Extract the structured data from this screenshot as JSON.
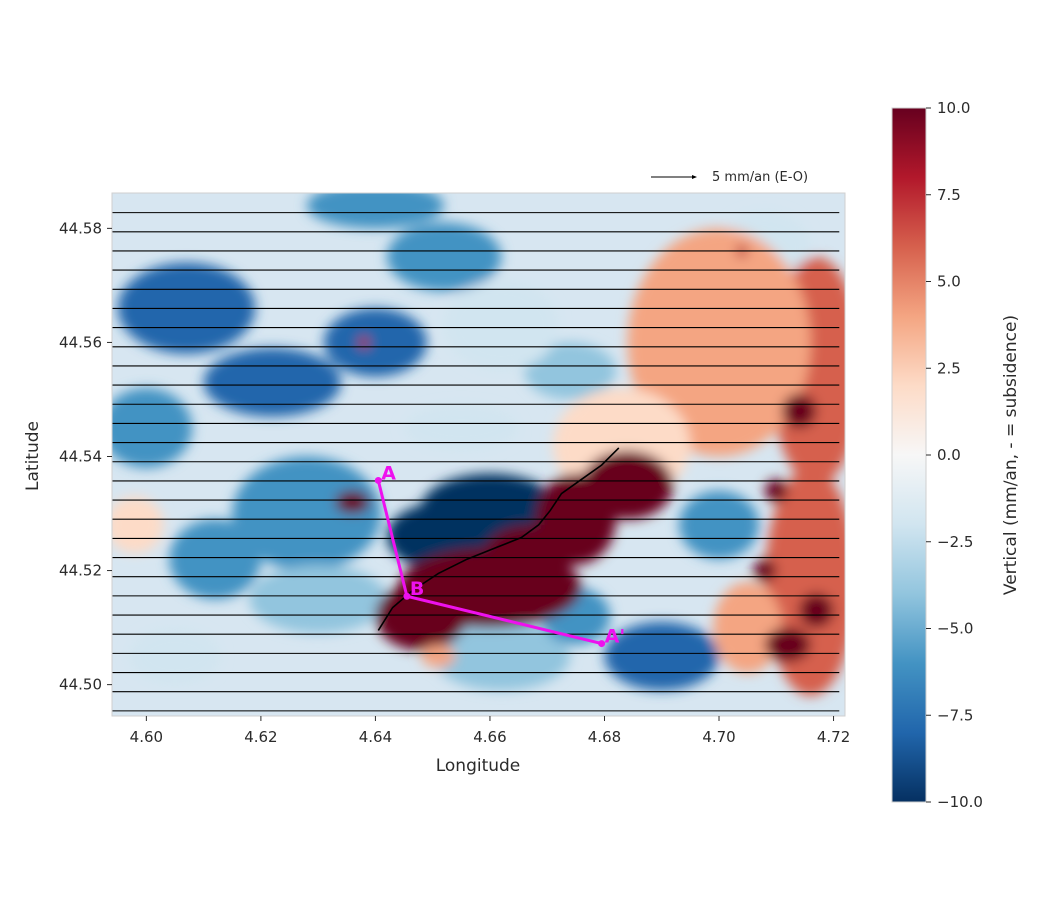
{
  "chart_data": {
    "type": "heatmap",
    "title": "",
    "xlabel": "Longitude",
    "ylabel": "Latitude",
    "xlim": [
      4.594,
      4.722
    ],
    "ylim": [
      44.4945,
      44.5862
    ],
    "x_ticks": [
      "4.60",
      "4.62",
      "4.64",
      "4.66",
      "4.68",
      "4.70",
      "4.72"
    ],
    "y_ticks": [
      "44.50",
      "44.52",
      "44.54",
      "44.56",
      "44.58"
    ],
    "grid": false,
    "colormap": "RdBu_r",
    "colorbar": {
      "label": "Vertical (mm/an, - = subsidence)",
      "range": [
        -10,
        10
      ],
      "ticks": [
        "10.0",
        "7.5",
        "5.0",
        "2.5",
        "0.0",
        "−2.5",
        "−5.0",
        "−7.5",
        "−10.0"
      ],
      "colors": [
        "#053061",
        "#2166ac",
        "#4393c3",
        "#92c5de",
        "#d1e5f0",
        "#f7f7f7",
        "#fddbc7",
        "#f4a582",
        "#d6604d",
        "#b2182b",
        "#67001f"
      ]
    },
    "background_color": "#d7e6f1",
    "field_blobs": [
      {
        "lon": 4.607,
        "lat": 44.566,
        "rlon": 0.012,
        "rlat": 0.008,
        "v": -9
      },
      {
        "lon": 4.622,
        "lat": 44.553,
        "rlon": 0.012,
        "rlat": 0.006,
        "v": -8
      },
      {
        "lon": 4.6,
        "lat": 44.545,
        "rlon": 0.008,
        "rlat": 0.007,
        "v": -6
      },
      {
        "lon": 4.64,
        "lat": 44.56,
        "rlon": 0.009,
        "rlat": 0.006,
        "v": -8
      },
      {
        "lon": 4.652,
        "lat": 44.575,
        "rlon": 0.01,
        "rlat": 0.006,
        "v": -7
      },
      {
        "lon": 4.628,
        "lat": 44.53,
        "rlon": 0.013,
        "rlat": 0.01,
        "v": -6
      },
      {
        "lon": 4.63,
        "lat": 44.515,
        "rlon": 0.012,
        "rlat": 0.006,
        "v": -5
      },
      {
        "lon": 4.612,
        "lat": 44.522,
        "rlon": 0.008,
        "rlat": 0.007,
        "v": -6
      },
      {
        "lon": 4.66,
        "lat": 44.531,
        "rlon": 0.012,
        "rlat": 0.006,
        "v": -10
      },
      {
        "lon": 4.652,
        "lat": 44.526,
        "rlon": 0.01,
        "rlat": 0.006,
        "v": -10
      },
      {
        "lon": 4.674,
        "lat": 44.555,
        "rlon": 0.008,
        "rlat": 0.005,
        "v": -5
      },
      {
        "lon": 4.697,
        "lat": 44.56,
        "rlon": 0.005,
        "rlat": 0.003,
        "v": -9
      },
      {
        "lon": 4.7,
        "lat": 44.528,
        "rlon": 0.007,
        "rlat": 0.006,
        "v": -6
      },
      {
        "lon": 4.69,
        "lat": 44.505,
        "rlon": 0.01,
        "rlat": 0.006,
        "v": -8
      },
      {
        "lon": 4.662,
        "lat": 44.505,
        "rlon": 0.012,
        "rlat": 0.006,
        "v": -4
      },
      {
        "lon": 4.675,
        "lat": 44.512,
        "rlon": 0.006,
        "rlat": 0.005,
        "v": -7
      },
      {
        "lon": 4.64,
        "lat": 44.584,
        "rlon": 0.012,
        "rlat": 0.004,
        "v": -6
      },
      {
        "lon": 4.662,
        "lat": 44.563,
        "rlon": 0.01,
        "rlat": 0.008,
        "v": -3
      },
      {
        "lon": 4.655,
        "lat": 44.545,
        "rlon": 0.01,
        "rlat": 0.004,
        "v": -3
      },
      {
        "lon": 4.598,
        "lat": 44.528,
        "rlon": 0.005,
        "rlat": 0.005,
        "v": 2
      },
      {
        "lon": 4.605,
        "lat": 44.505,
        "rlon": 0.008,
        "rlat": 0.005,
        "v": -2
      },
      {
        "lon": 4.708,
        "lat": 44.577,
        "rlon": 0.008,
        "rlat": 0.006,
        "v": -3
      },
      {
        "lon": 4.717,
        "lat": 44.555,
        "rlon": 0.008,
        "rlat": 0.02,
        "v": 6
      },
      {
        "lon": 4.716,
        "lat": 44.518,
        "rlon": 0.008,
        "rlat": 0.02,
        "v": 6
      },
      {
        "lon": 4.7,
        "lat": 44.56,
        "rlon": 0.016,
        "rlat": 0.02,
        "v": 3
      },
      {
        "lon": 4.683,
        "lat": 44.542,
        "rlon": 0.012,
        "rlat": 0.01,
        "v": 2
      },
      {
        "lon": 4.705,
        "lat": 44.51,
        "rlon": 0.006,
        "rlat": 0.008,
        "v": 3
      },
      {
        "lon": 4.66,
        "lat": 44.517,
        "rlon": 0.016,
        "rlat": 0.007,
        "v": 10
      },
      {
        "lon": 4.648,
        "lat": 44.512,
        "rlon": 0.008,
        "rlat": 0.006,
        "v": 10
      },
      {
        "lon": 4.675,
        "lat": 44.529,
        "rlon": 0.007,
        "rlat": 0.008,
        "v": 10
      },
      {
        "lon": 4.684,
        "lat": 44.535,
        "rlon": 0.008,
        "rlat": 0.006,
        "v": 10
      },
      {
        "lon": 4.667,
        "lat": 44.523,
        "rlon": 0.008,
        "rlat": 0.005,
        "v": 10
      },
      {
        "lon": 4.714,
        "lat": 44.548,
        "rlon": 0.003,
        "rlat": 0.003,
        "v": 10
      },
      {
        "lon": 4.712,
        "lat": 44.507,
        "rlon": 0.004,
        "rlat": 0.003,
        "v": 10
      },
      {
        "lon": 4.717,
        "lat": 44.513,
        "rlon": 0.003,
        "rlat": 0.003,
        "v": 10
      },
      {
        "lon": 4.71,
        "lat": 44.534,
        "rlon": 0.002,
        "rlat": 0.002,
        "v": 10
      },
      {
        "lon": 4.708,
        "lat": 44.52,
        "rlon": 0.002,
        "rlat": 0.002,
        "v": 10
      },
      {
        "lon": 4.636,
        "lat": 44.532,
        "rlon": 0.003,
        "rlat": 0.002,
        "v": 10
      },
      {
        "lon": 4.651,
        "lat": 44.505,
        "rlon": 0.003,
        "rlat": 0.002,
        "v": 3
      },
      {
        "lon": 4.638,
        "lat": 44.56,
        "rlon": 0.001,
        "rlat": 0.001,
        "v": 8
      },
      {
        "lon": 4.704,
        "lat": 44.576,
        "rlon": 0.001,
        "rlat": 0.001,
        "v": 8
      }
    ],
    "arrow_rows": {
      "lat_start": 44.4954,
      "lat_step": 0.00336,
      "count": 27,
      "lon_start": 4.594,
      "lon_end": 4.721
    },
    "arrow_key": {
      "label": "5 mm/an (E-O)",
      "length_mm_an": 5
    },
    "fault_trace": [
      [
        4.6405,
        44.5095
      ],
      [
        4.643,
        44.5135
      ],
      [
        4.6465,
        44.5165
      ],
      [
        4.651,
        44.5195
      ],
      [
        4.656,
        44.522
      ],
      [
        4.661,
        44.524
      ],
      [
        4.6655,
        44.5258
      ],
      [
        4.6685,
        44.528
      ],
      [
        4.6705,
        44.5305
      ],
      [
        4.6725,
        44.5335
      ],
      [
        4.676,
        44.536
      ],
      [
        4.6795,
        44.5385
      ],
      [
        4.6825,
        44.5415
      ]
    ],
    "profile": {
      "color": "#ee11ee",
      "points": [
        {
          "label": "A",
          "lon": 4.6405,
          "lat": 44.5358
        },
        {
          "label": "B",
          "lon": 4.6455,
          "lat": 44.5155
        },
        {
          "label": "A'",
          "lon": 4.6795,
          "lat": 44.5072
        }
      ]
    }
  }
}
